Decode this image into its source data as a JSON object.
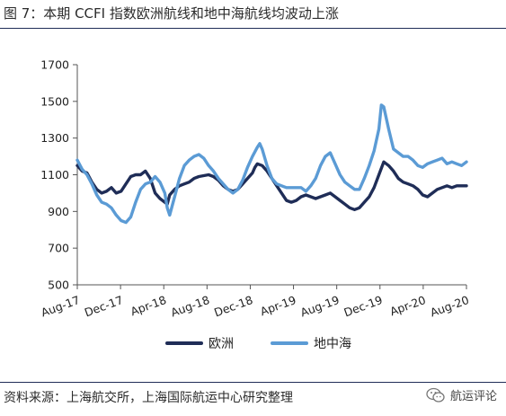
{
  "figure": {
    "title": "图 7：本期 CCFI 指数欧洲航线和地中海航线均波动上涨",
    "source": "资料来源：上海航交所，上海国际航运中心研究整理",
    "watermark": "航运评论",
    "watermark_icon": "wechat-icon"
  },
  "chart_data": {
    "type": "line",
    "title": "",
    "xlabel": "",
    "ylabel": "",
    "ylim": [
      500,
      1700
    ],
    "yticks": [
      500,
      700,
      900,
      1100,
      1300,
      1500,
      1700
    ],
    "xticks": [
      "Aug-17",
      "Dec-17",
      "Apr-18",
      "Aug-18",
      "Dec-18",
      "Apr-19",
      "Aug-19",
      "Dec-19",
      "Apr-20",
      "Aug-20"
    ],
    "x_unit": "week index from Aug-17 (about 17 weeks per tick)",
    "legend_position": "bottom",
    "grid": false,
    "series": [
      {
        "name": "欧洲",
        "color": "#1f2d57",
        "points": [
          [
            0,
            1150
          ],
          [
            2,
            1120
          ],
          [
            4,
            1110
          ],
          [
            6,
            1060
          ],
          [
            8,
            1020
          ],
          [
            10,
            1000
          ],
          [
            12,
            1010
          ],
          [
            14,
            1030
          ],
          [
            16,
            1000
          ],
          [
            18,
            1010
          ],
          [
            20,
            1050
          ],
          [
            22,
            1090
          ],
          [
            24,
            1100
          ],
          [
            26,
            1100
          ],
          [
            28,
            1120
          ],
          [
            30,
            1080
          ],
          [
            32,
            1000
          ],
          [
            34,
            970
          ],
          [
            36,
            950
          ],
          [
            37,
            940
          ],
          [
            38,
            990
          ],
          [
            40,
            1020
          ],
          [
            42,
            1040
          ],
          [
            44,
            1050
          ],
          [
            46,
            1060
          ],
          [
            48,
            1080
          ],
          [
            50,
            1090
          ],
          [
            52,
            1095
          ],
          [
            54,
            1100
          ],
          [
            56,
            1090
          ],
          [
            58,
            1070
          ],
          [
            60,
            1040
          ],
          [
            62,
            1020
          ],
          [
            64,
            1010
          ],
          [
            66,
            1020
          ],
          [
            68,
            1050
          ],
          [
            70,
            1080
          ],
          [
            72,
            1110
          ],
          [
            73,
            1140
          ],
          [
            74,
            1160
          ],
          [
            76,
            1150
          ],
          [
            78,
            1120
          ],
          [
            80,
            1080
          ],
          [
            82,
            1040
          ],
          [
            84,
            1000
          ],
          [
            86,
            960
          ],
          [
            88,
            950
          ],
          [
            90,
            960
          ],
          [
            92,
            980
          ],
          [
            94,
            990
          ],
          [
            96,
            980
          ],
          [
            98,
            970
          ],
          [
            100,
            980
          ],
          [
            102,
            990
          ],
          [
            104,
            1000
          ],
          [
            106,
            980
          ],
          [
            108,
            960
          ],
          [
            110,
            940
          ],
          [
            112,
            920
          ],
          [
            114,
            910
          ],
          [
            116,
            920
          ],
          [
            118,
            950
          ],
          [
            120,
            980
          ],
          [
            122,
            1030
          ],
          [
            124,
            1100
          ],
          [
            126,
            1170
          ],
          [
            128,
            1150
          ],
          [
            130,
            1120
          ],
          [
            132,
            1080
          ],
          [
            134,
            1060
          ],
          [
            136,
            1050
          ],
          [
            138,
            1040
          ],
          [
            140,
            1020
          ],
          [
            142,
            990
          ],
          [
            144,
            980
          ],
          [
            146,
            1000
          ],
          [
            148,
            1020
          ],
          [
            150,
            1030
          ],
          [
            152,
            1040
          ],
          [
            154,
            1030
          ],
          [
            156,
            1040
          ],
          [
            158,
            1040
          ],
          [
            160,
            1040
          ]
        ]
      },
      {
        "name": "地中海",
        "color": "#5b9bd5",
        "points": [
          [
            0,
            1180
          ],
          [
            2,
            1130
          ],
          [
            4,
            1100
          ],
          [
            6,
            1050
          ],
          [
            8,
            990
          ],
          [
            10,
            950
          ],
          [
            12,
            940
          ],
          [
            14,
            920
          ],
          [
            16,
            880
          ],
          [
            18,
            850
          ],
          [
            20,
            840
          ],
          [
            22,
            870
          ],
          [
            24,
            950
          ],
          [
            26,
            1020
          ],
          [
            28,
            1050
          ],
          [
            30,
            1060
          ],
          [
            32,
            1090
          ],
          [
            34,
            1060
          ],
          [
            36,
            1000
          ],
          [
            37,
            920
          ],
          [
            38,
            880
          ],
          [
            40,
            980
          ],
          [
            42,
            1080
          ],
          [
            44,
            1150
          ],
          [
            46,
            1180
          ],
          [
            48,
            1200
          ],
          [
            50,
            1210
          ],
          [
            52,
            1190
          ],
          [
            54,
            1150
          ],
          [
            56,
            1120
          ],
          [
            58,
            1080
          ],
          [
            60,
            1050
          ],
          [
            62,
            1020
          ],
          [
            64,
            1000
          ],
          [
            66,
            1020
          ],
          [
            68,
            1070
          ],
          [
            70,
            1140
          ],
          [
            72,
            1200
          ],
          [
            74,
            1250
          ],
          [
            75,
            1270
          ],
          [
            76,
            1240
          ],
          [
            78,
            1150
          ],
          [
            80,
            1080
          ],
          [
            82,
            1050
          ],
          [
            84,
            1040
          ],
          [
            86,
            1030
          ],
          [
            88,
            1030
          ],
          [
            90,
            1030
          ],
          [
            92,
            1030
          ],
          [
            94,
            1010
          ],
          [
            96,
            1040
          ],
          [
            98,
            1080
          ],
          [
            100,
            1150
          ],
          [
            102,
            1200
          ],
          [
            104,
            1220
          ],
          [
            106,
            1160
          ],
          [
            108,
            1100
          ],
          [
            110,
            1060
          ],
          [
            112,
            1040
          ],
          [
            114,
            1020
          ],
          [
            116,
            1020
          ],
          [
            118,
            1080
          ],
          [
            120,
            1150
          ],
          [
            122,
            1230
          ],
          [
            124,
            1350
          ],
          [
            125,
            1480
          ],
          [
            126,
            1470
          ],
          [
            128,
            1350
          ],
          [
            130,
            1240
          ],
          [
            132,
            1220
          ],
          [
            134,
            1200
          ],
          [
            136,
            1200
          ],
          [
            138,
            1180
          ],
          [
            140,
            1150
          ],
          [
            142,
            1140
          ],
          [
            144,
            1160
          ],
          [
            146,
            1170
          ],
          [
            148,
            1180
          ],
          [
            150,
            1190
          ],
          [
            152,
            1160
          ],
          [
            154,
            1170
          ],
          [
            156,
            1160
          ],
          [
            158,
            1150
          ],
          [
            160,
            1170
          ]
        ]
      }
    ]
  }
}
